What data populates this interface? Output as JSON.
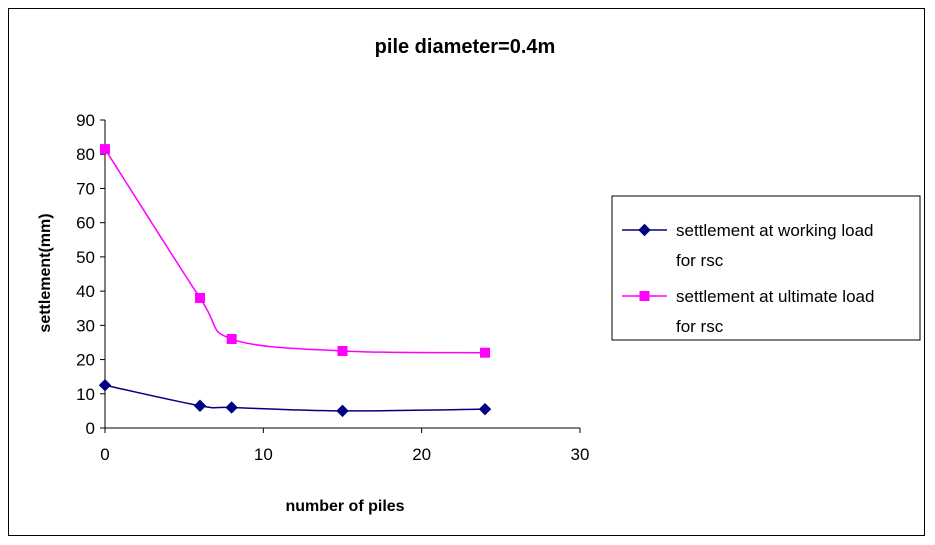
{
  "chart_data": {
    "type": "line",
    "title": "pile diameter=0.4m",
    "xlabel": "number of piles",
    "ylabel": "settlement(mm)",
    "xlim": [
      0,
      30
    ],
    "ylim": [
      0,
      90
    ],
    "xticks": [
      "0",
      "10",
      "20",
      "30"
    ],
    "yticks": [
      "0",
      "10",
      "20",
      "30",
      "40",
      "50",
      "60",
      "70",
      "80",
      "90"
    ],
    "grid": false,
    "legend_position": "right",
    "series": [
      {
        "name": "settlement at working load for rsc",
        "legend_lines": [
          "settlement at working load",
          "for rsc"
        ],
        "color": "#000080",
        "marker": "diamond",
        "x": [
          0,
          6,
          8,
          15,
          24
        ],
        "y": [
          12.5,
          6.5,
          6.0,
          5.0,
          5.5
        ]
      },
      {
        "name": "settlement at ultimate load for rsc",
        "legend_lines": [
          "settlement at ultimate load",
          "for rsc"
        ],
        "color": "#FF00FF",
        "marker": "square",
        "x": [
          0,
          6,
          8,
          15,
          24
        ],
        "y": [
          81.5,
          38.0,
          26.0,
          22.5,
          22.0
        ]
      }
    ]
  }
}
